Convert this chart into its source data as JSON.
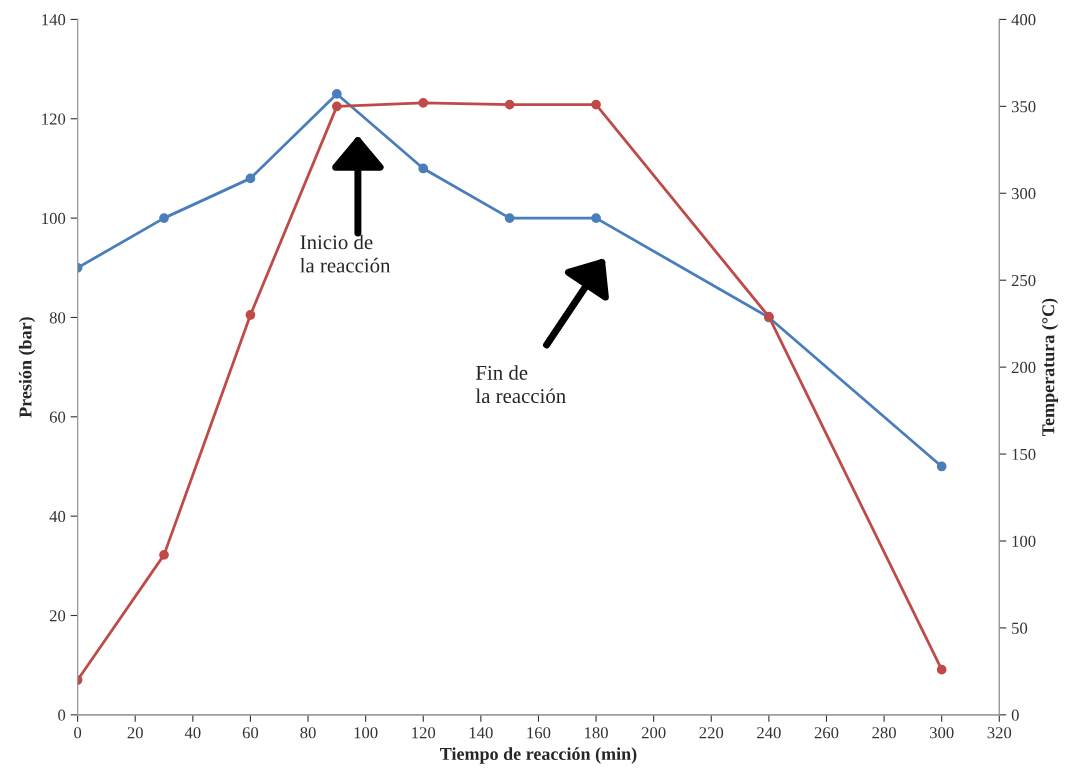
{
  "chart_data": {
    "type": "line",
    "xlabel": "Tiempo de reacción (min)",
    "ylabel": "Presión (bar)",
    "y2label": "Temperatura (°C)",
    "x": [
      0,
      30,
      60,
      90,
      120,
      150,
      180,
      240,
      300
    ],
    "series": [
      {
        "color": "#4a7ebb",
        "values": [
          90,
          100,
          108,
          125,
          110,
          100,
          100,
          80,
          50
        ]
      },
      {
        "color": "#be4b48",
        "axis": "y2",
        "values": [
          20,
          92,
          230,
          350,
          352,
          351,
          351,
          229,
          26
        ]
      }
    ],
    "xlim": [
      0,
      320
    ],
    "xticks": [
      0,
      20,
      40,
      60,
      80,
      100,
      120,
      140,
      160,
      180,
      200,
      220,
      240,
      260,
      280,
      300,
      320
    ],
    "ylim": [
      0,
      140
    ],
    "yticks": [
      0,
      20,
      40,
      60,
      80,
      100,
      120,
      140
    ],
    "y2lim": [
      0,
      400
    ],
    "y2ticks": [
      0,
      50,
      100,
      150,
      200,
      250,
      300,
      350,
      400
    ],
    "marker": "circle",
    "line_style": "solid",
    "grid": false,
    "legend": false,
    "annotations": [
      "Inicio de\nla reacción",
      "Fin de\nla reacción"
    ]
  }
}
